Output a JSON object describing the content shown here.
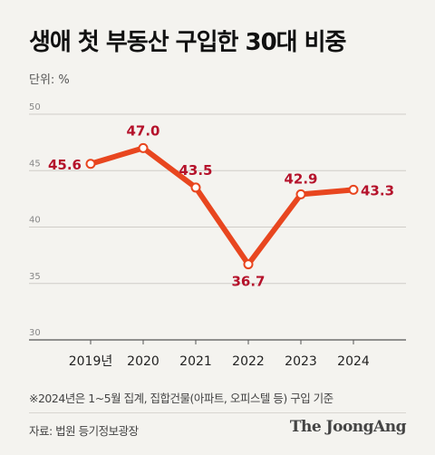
{
  "title": "생애 첫 부동산 구입한 30대 비중",
  "unit": "단위: %",
  "note": "※2024년은 1~5월 집계, 집합건물(아파트, 오피스텔 등) 구입 기준",
  "source": "자료: 법원 등기정보광장",
  "brand": "The JoongAng",
  "colors": {
    "line": "#e8461f",
    "label": "#b5122b",
    "grid": "#cfcdc8"
  },
  "chart_data": {
    "type": "line",
    "categories": [
      "2019년",
      "2020",
      "2021",
      "2022",
      "2023",
      "2024"
    ],
    "values": [
      45.6,
      47.0,
      43.5,
      36.7,
      42.9,
      43.3
    ],
    "value_labels": [
      "45.6",
      "47.0",
      "43.5",
      "36.7",
      "42.9",
      "43.3"
    ],
    "ylim": [
      30,
      50
    ],
    "yticks": [
      30,
      35,
      40,
      45,
      50
    ],
    "ytick_labels": [
      "30",
      "35",
      "40",
      "45",
      "50"
    ],
    "grid": true
  }
}
